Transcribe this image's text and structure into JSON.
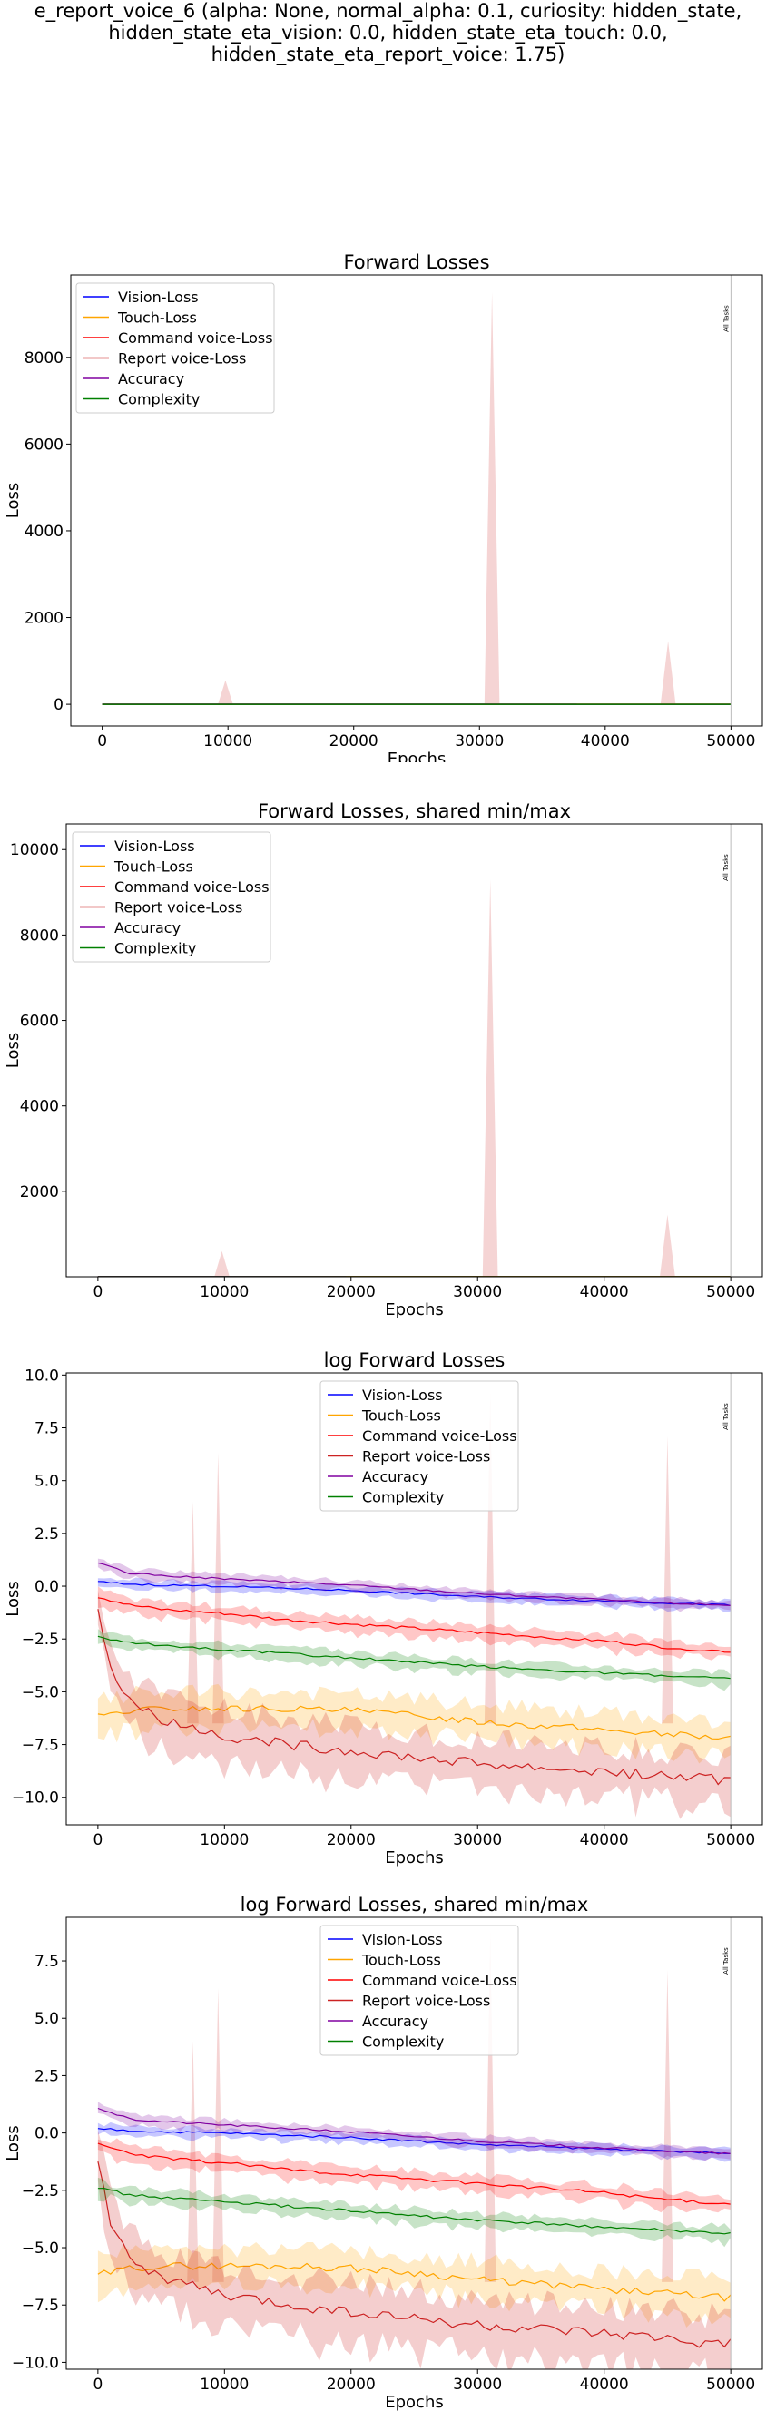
{
  "figure": {
    "suptitle_lines": [
      "e_report_voice_6 (alpha: None, normal_alpha: 0.1, curiosity: hidden_state,",
      "hidden_state_eta_vision: 0.0, hidden_state_eta_touch: 0.0,",
      "hidden_state_eta_report_voice: 1.75)"
    ]
  },
  "colors": {
    "vision": "#0000ff",
    "touch": "#ffa500",
    "command": "#ff0000",
    "report": "#cc2222",
    "accuracy": "#8000a0",
    "complexity": "#008000"
  },
  "chart_data": [
    {
      "type": "line",
      "title": "Forward Losses",
      "xlabel": "Epochs",
      "ylabel": "Loss",
      "xlim": [
        -2500,
        52500
      ],
      "ylim": [
        -500,
        9900
      ],
      "xticks": [
        0,
        10000,
        20000,
        30000,
        40000,
        50000
      ],
      "yticks": [
        0,
        2000,
        4000,
        6000,
        8000
      ],
      "ytick_labels": [
        "0",
        "2000",
        "4000",
        "6000",
        "8000"
      ],
      "legend_position": "upper left",
      "vline": {
        "x": 50000,
        "label": "All Tasks"
      },
      "series": [
        {
          "name": "Vision-Loss",
          "color": "#0000ff",
          "x": [
            0,
            50000
          ],
          "values": [
            1,
            0.4
          ]
        },
        {
          "name": "Touch-Loss",
          "color": "#ffa500",
          "x": [
            0,
            50000
          ],
          "values": [
            0.002,
            0.001
          ]
        },
        {
          "name": "Command voice-Loss",
          "color": "#ff0000",
          "x": [
            0,
            50000
          ],
          "values": [
            0.3,
            0.04
          ]
        },
        {
          "name": "Report voice-Loss",
          "color": "#cc2222",
          "x": [
            0,
            50000
          ],
          "values": [
            0.0003,
            0.0001
          ]
        },
        {
          "name": "Accuracy",
          "color": "#8000a0",
          "x": [
            0,
            50000
          ],
          "values": [
            3,
            0.4
          ]
        },
        {
          "name": "Complexity",
          "color": "#008000",
          "x": [
            0,
            50000
          ],
          "values": [
            0.08,
            0.01
          ]
        }
      ],
      "spikes": [
        {
          "x": 9800,
          "peak": 550,
          "half_width": 600
        },
        {
          "x": 31000,
          "peak": 9500,
          "half_width": 600
        },
        {
          "x": 45000,
          "peak": 1450,
          "half_width": 600
        }
      ]
    },
    {
      "type": "line",
      "title": "Forward Losses, shared min/max",
      "xlabel": "Epochs",
      "ylabel": "Loss",
      "xlim": [
        -2500,
        52500
      ],
      "ylim": [
        0,
        10600
      ],
      "xticks": [
        0,
        10000,
        20000,
        30000,
        40000,
        50000
      ],
      "yticks": [
        2000,
        4000,
        6000,
        8000,
        10000
      ],
      "ytick_labels": [
        "2000",
        "4000",
        "6000",
        "8000",
        "10000"
      ],
      "legend_position": "upper left",
      "vline": {
        "x": 50000,
        "label": "All Tasks"
      },
      "series": [
        {
          "name": "Vision-Loss",
          "color": "#0000ff",
          "x": [
            0,
            50000
          ],
          "values": [
            1,
            0.4
          ]
        },
        {
          "name": "Touch-Loss",
          "color": "#ffa500",
          "x": [
            0,
            50000
          ],
          "values": [
            0.002,
            0.001
          ]
        },
        {
          "name": "Command voice-Loss",
          "color": "#ff0000",
          "x": [
            0,
            50000
          ],
          "values": [
            0.3,
            0.04
          ]
        },
        {
          "name": "Report voice-Loss",
          "color": "#cc2222",
          "x": [
            0,
            50000
          ],
          "values": [
            0.0003,
            0.0001
          ]
        },
        {
          "name": "Accuracy",
          "color": "#8000a0",
          "x": [
            0,
            50000
          ],
          "values": [
            3,
            0.4
          ]
        },
        {
          "name": "Complexity",
          "color": "#008000",
          "x": [
            0,
            50000
          ],
          "values": [
            0.08,
            0.01
          ]
        }
      ],
      "spikes": [
        {
          "x": 9800,
          "peak": 600,
          "half_width": 600
        },
        {
          "x": 31000,
          "peak": 9300,
          "half_width": 600
        },
        {
          "x": 45000,
          "peak": 1450,
          "half_width": 600
        }
      ]
    },
    {
      "type": "line",
      "title": "log Forward Losses",
      "xlabel": "Epochs",
      "ylabel": "Loss",
      "xlim": [
        -2500,
        52500
      ],
      "ylim": [
        -11.3,
        10.1
      ],
      "xticks": [
        0,
        10000,
        20000,
        30000,
        40000,
        50000
      ],
      "yticks": [
        -10,
        -7.5,
        -5,
        -2.5,
        0,
        2.5,
        5,
        7.5,
        10
      ],
      "ytick_labels": [
        "−10.0",
        "−7.5",
        "−5.0",
        "−2.5",
        "0.0",
        "2.5",
        "5.0",
        "7.5",
        "10.0"
      ],
      "legend_position": "upper center",
      "vline": {
        "x": 50000,
        "label": "All Tasks"
      },
      "series": [
        {
          "name": "Vision-Loss",
          "color": "#0000ff",
          "band": 0.25,
          "x": [
            0,
            2500,
            5000,
            10000,
            15000,
            20000,
            25000,
            30000,
            35000,
            40000,
            45000,
            50000
          ],
          "values": [
            0.2,
            0.1,
            0.05,
            0.0,
            -0.1,
            -0.2,
            -0.35,
            -0.5,
            -0.6,
            -0.7,
            -0.8,
            -0.9
          ]
        },
        {
          "name": "Touch-Loss",
          "color": "#ffa500",
          "band": 0.9,
          "x": [
            0,
            2500,
            5000,
            10000,
            15000,
            20000,
            25000,
            30000,
            35000,
            40000,
            45000,
            50000
          ],
          "values": [
            -6.2,
            -5.9,
            -5.8,
            -5.8,
            -5.8,
            -5.9,
            -6.1,
            -6.4,
            -6.6,
            -6.8,
            -7.0,
            -7.2
          ]
        },
        {
          "name": "Command voice-Loss",
          "color": "#ff0000",
          "band": 0.4,
          "x": [
            0,
            2500,
            5000,
            10000,
            15000,
            20000,
            25000,
            30000,
            35000,
            40000,
            45000,
            50000
          ],
          "values": [
            -0.5,
            -0.9,
            -1.1,
            -1.3,
            -1.6,
            -1.8,
            -2.0,
            -2.2,
            -2.4,
            -2.6,
            -2.9,
            -3.1
          ]
        },
        {
          "name": "Report voice-Loss",
          "color": "#cc2222",
          "band": 1.4,
          "x": [
            0,
            1000,
            2000,
            3000,
            4000,
            5000,
            7500,
            10000,
            15000,
            20000,
            25000,
            30000,
            35000,
            40000,
            45000,
            50000
          ],
          "values": [
            -1.0,
            -3.8,
            -5.0,
            -5.6,
            -6.0,
            -6.3,
            -6.7,
            -7.1,
            -7.5,
            -7.8,
            -8.1,
            -8.4,
            -8.6,
            -8.8,
            -9.0,
            -9.2
          ]
        },
        {
          "name": "Accuracy",
          "color": "#8000a0",
          "band": 0.25,
          "x": [
            0,
            2500,
            5000,
            10000,
            15000,
            20000,
            25000,
            30000,
            35000,
            40000,
            45000,
            50000
          ],
          "values": [
            1.1,
            0.6,
            0.5,
            0.35,
            0.2,
            0.05,
            -0.15,
            -0.35,
            -0.5,
            -0.65,
            -0.8,
            -0.9
          ]
        },
        {
          "name": "Complexity",
          "color": "#008000",
          "band": 0.35,
          "x": [
            0,
            2500,
            5000,
            10000,
            15000,
            20000,
            25000,
            30000,
            35000,
            40000,
            45000,
            50000
          ],
          "values": [
            -2.4,
            -2.7,
            -2.8,
            -3.0,
            -3.2,
            -3.4,
            -3.6,
            -3.8,
            -3.95,
            -4.1,
            -4.25,
            -4.4
          ]
        }
      ],
      "spikes": [
        {
          "x": 7500,
          "peak": 4.0,
          "half_width": 450
        },
        {
          "x": 9500,
          "peak": 6.3,
          "half_width": 450
        },
        {
          "x": 31000,
          "peak": 9.2,
          "half_width": 450
        },
        {
          "x": 45000,
          "peak": 7.1,
          "half_width": 450
        }
      ]
    },
    {
      "type": "line",
      "title": "log Forward Losses, shared min/max",
      "xlabel": "Epochs",
      "ylabel": "Loss",
      "xlim": [
        -2500,
        52500
      ],
      "ylim": [
        -10.3,
        9.4
      ],
      "xticks": [
        0,
        10000,
        20000,
        30000,
        40000,
        50000
      ],
      "yticks": [
        -10,
        -7.5,
        -5,
        -2.5,
        0,
        2.5,
        5,
        7.5
      ],
      "ytick_labels": [
        "−10.0",
        "−7.5",
        "−5.0",
        "−2.5",
        "0.0",
        "2.5",
        "5.0",
        "7.5"
      ],
      "legend_position": "upper center",
      "vline": {
        "x": 50000,
        "label": "All Tasks"
      },
      "series": [
        {
          "name": "Vision-Loss",
          "color": "#0000ff",
          "band": 0.25,
          "x": [
            0,
            2500,
            5000,
            10000,
            15000,
            20000,
            25000,
            30000,
            35000,
            40000,
            45000,
            50000
          ],
          "values": [
            0.2,
            0.1,
            0.05,
            0.0,
            -0.1,
            -0.2,
            -0.35,
            -0.5,
            -0.6,
            -0.7,
            -0.8,
            -0.9
          ]
        },
        {
          "name": "Touch-Loss",
          "color": "#ffa500",
          "band": 0.9,
          "x": [
            0,
            2500,
            5000,
            10000,
            15000,
            20000,
            25000,
            30000,
            35000,
            40000,
            45000,
            50000
          ],
          "values": [
            -6.2,
            -5.9,
            -5.8,
            -5.8,
            -5.8,
            -5.9,
            -6.1,
            -6.4,
            -6.6,
            -6.8,
            -7.0,
            -7.2
          ]
        },
        {
          "name": "Command voice-Loss",
          "color": "#ff0000",
          "band": 0.4,
          "x": [
            0,
            2500,
            5000,
            10000,
            15000,
            20000,
            25000,
            30000,
            35000,
            40000,
            45000,
            50000
          ],
          "values": [
            -0.5,
            -0.9,
            -1.1,
            -1.3,
            -1.6,
            -1.8,
            -2.0,
            -2.2,
            -2.4,
            -2.6,
            -2.9,
            -3.1
          ]
        },
        {
          "name": "Report voice-Loss",
          "color": "#cc2222",
          "band": 1.4,
          "x": [
            0,
            1000,
            2000,
            3000,
            4000,
            5000,
            7500,
            10000,
            15000,
            20000,
            25000,
            30000,
            35000,
            40000,
            45000,
            50000
          ],
          "values": [
            -1.0,
            -3.8,
            -5.0,
            -5.6,
            -6.0,
            -6.3,
            -6.7,
            -7.1,
            -7.5,
            -7.8,
            -8.1,
            -8.4,
            -8.6,
            -8.8,
            -9.0,
            -9.2
          ]
        },
        {
          "name": "Accuracy",
          "color": "#8000a0",
          "band": 0.25,
          "x": [
            0,
            2500,
            5000,
            10000,
            15000,
            20000,
            25000,
            30000,
            35000,
            40000,
            45000,
            50000
          ],
          "values": [
            1.1,
            0.6,
            0.5,
            0.35,
            0.2,
            0.05,
            -0.15,
            -0.35,
            -0.5,
            -0.65,
            -0.8,
            -0.9
          ]
        },
        {
          "name": "Complexity",
          "color": "#008000",
          "band": 0.35,
          "x": [
            0,
            2500,
            5000,
            10000,
            15000,
            20000,
            25000,
            30000,
            35000,
            40000,
            45000,
            50000
          ],
          "values": [
            -2.4,
            -2.7,
            -2.8,
            -3.0,
            -3.2,
            -3.4,
            -3.6,
            -3.8,
            -3.95,
            -4.1,
            -4.25,
            -4.4
          ]
        }
      ],
      "spikes": [
        {
          "x": 7500,
          "peak": 4.0,
          "half_width": 450
        },
        {
          "x": 9500,
          "peak": 6.3,
          "half_width": 450
        },
        {
          "x": 31000,
          "peak": 8.8,
          "half_width": 450
        },
        {
          "x": 45000,
          "peak": 7.1,
          "half_width": 450
        }
      ]
    }
  ]
}
